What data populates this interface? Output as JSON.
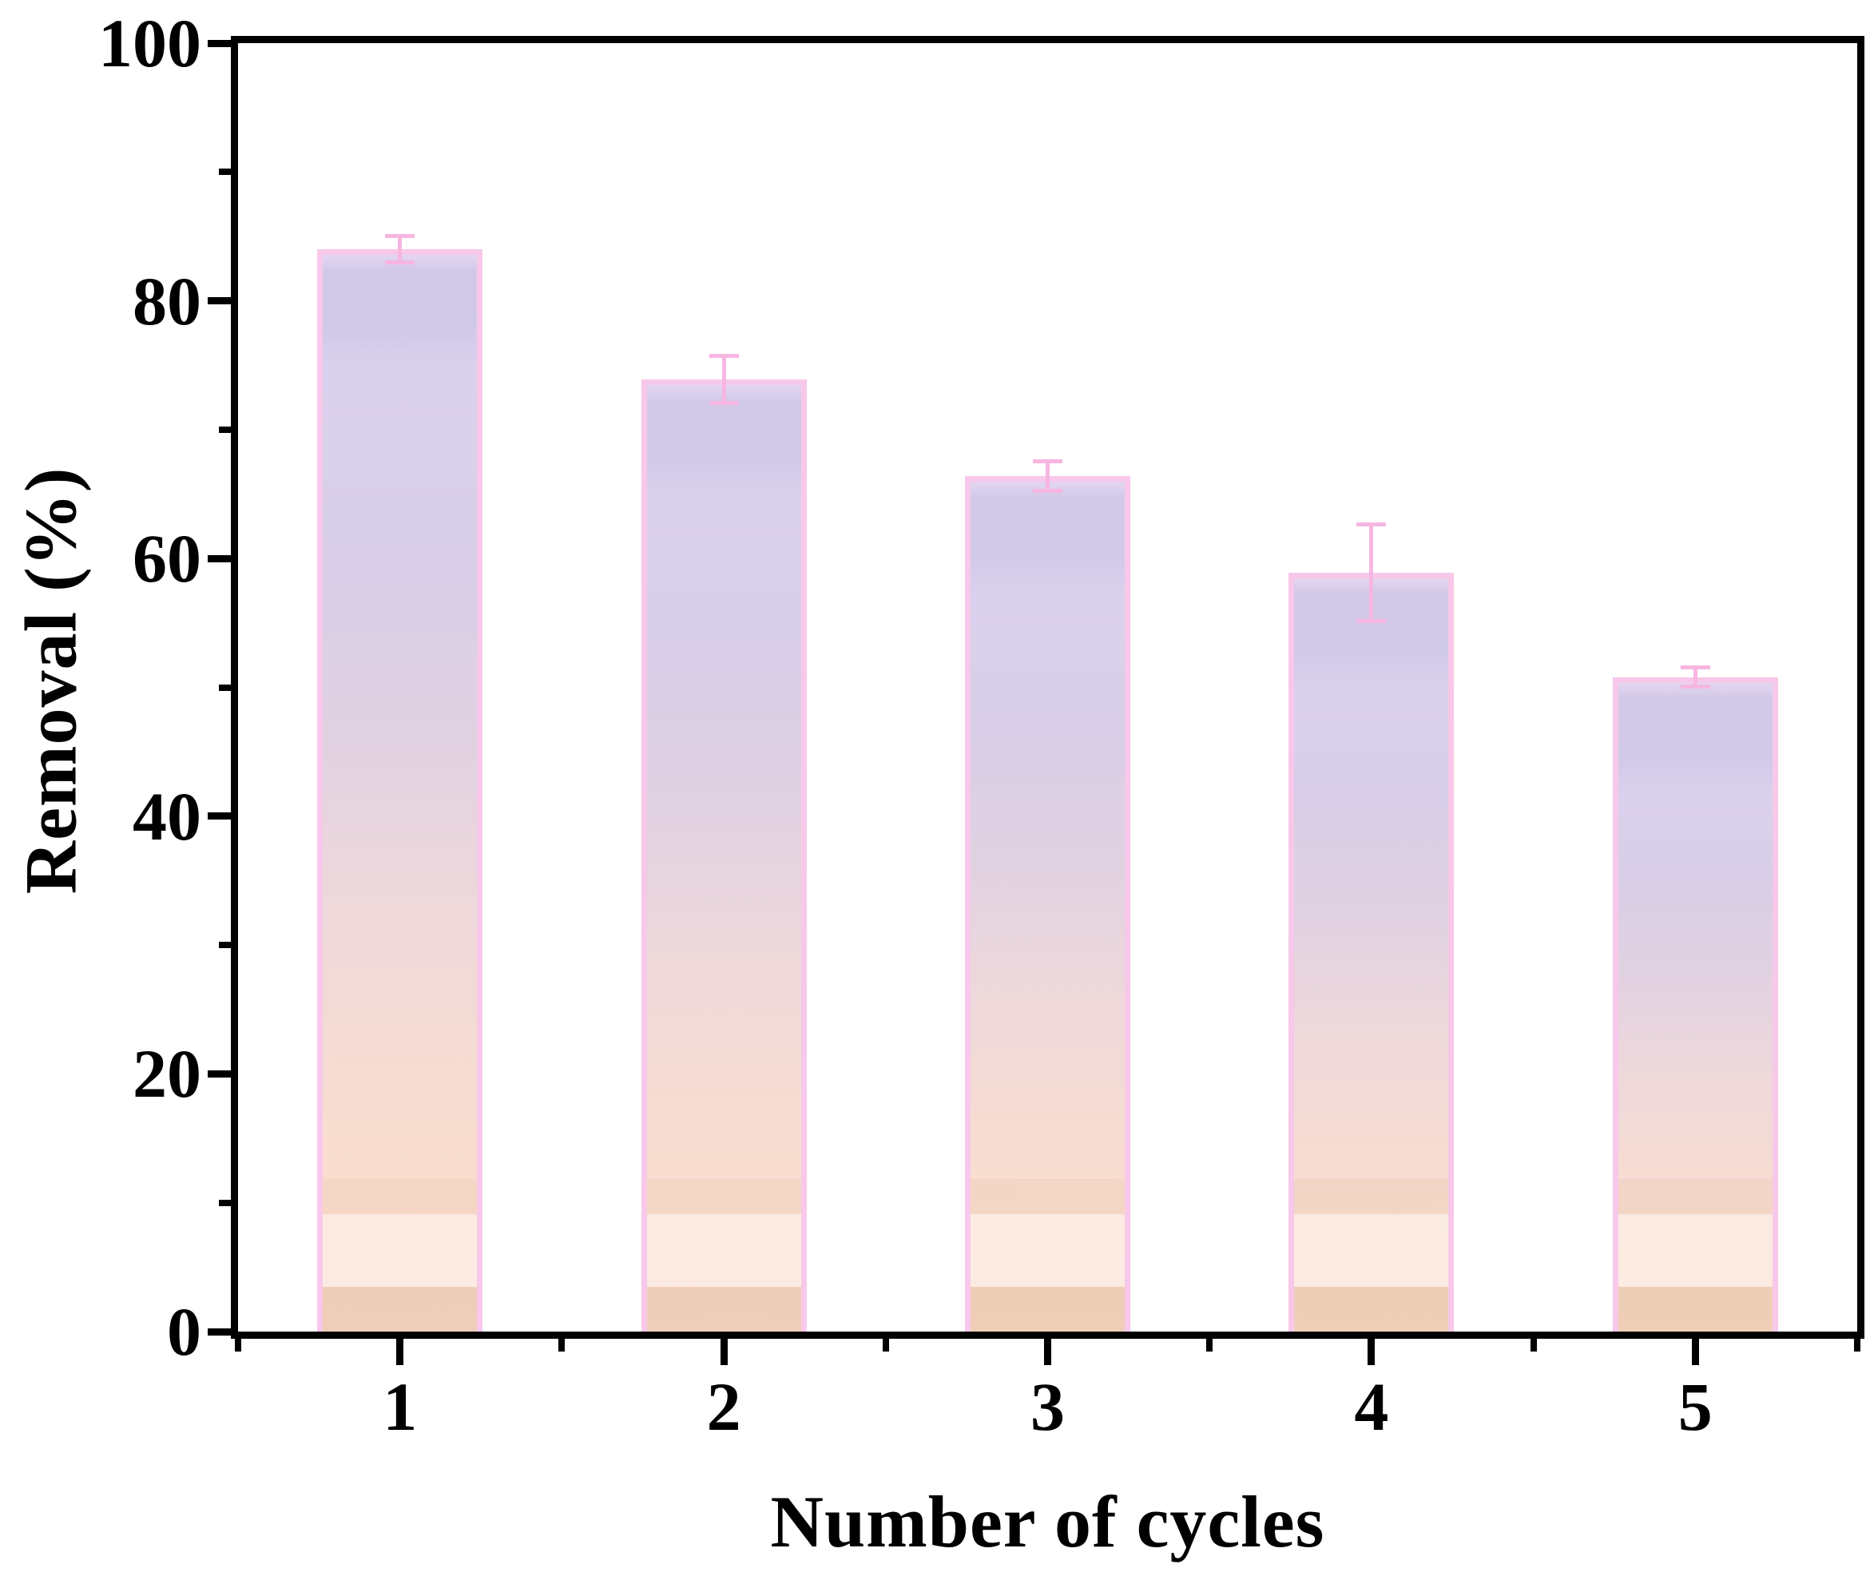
{
  "figure": {
    "background": "#ffffff"
  },
  "chart_data": {
    "type": "bar",
    "title": "",
    "xlabel": "Number of cycles",
    "ylabel": "Removal (%)",
    "categories": [
      "1",
      "2",
      "3",
      "4",
      "5"
    ],
    "values": [
      84,
      73.9,
      66.4,
      58.9,
      50.8
    ],
    "errors": [
      1.2,
      2.0,
      1.3,
      3.9,
      0.9
    ],
    "ylim": [
      0,
      100
    ],
    "y_major_ticks": [
      0,
      20,
      40,
      60,
      80,
      100
    ],
    "y_minor_ticks": [
      10,
      30,
      50,
      70,
      90
    ],
    "grid": false,
    "legend": "none",
    "bar_width_fraction": 0.51,
    "style": {
      "axis_color": "#000000",
      "bar_border_color": "#f8c8ea",
      "error_bar_color": "#f7b6e1",
      "fill_stops": [
        [
          "0px",
          "#e4d6f1"
        ],
        [
          "20px",
          "#d2c9e8"
        ],
        [
          "95px",
          "#d1c9e8"
        ],
        [
          "140px",
          "#dad1ec"
        ],
        [
          "30%",
          "#d8cee7"
        ],
        [
          "46%",
          "#e2d2e1"
        ],
        [
          "61%",
          "#eed8da"
        ],
        [
          "76%",
          "#f6dcd2"
        ],
        [
          "88%",
          "#fadecf"
        ],
        [
          "100%",
          "#fbdfd0"
        ]
      ],
      "bottom_bands": [
        [
          "0px",
          "56px",
          "rgba(198,148,102,0.22)"
        ],
        [
          "56px",
          "147px",
          "rgba(255,255,255,0.38)"
        ],
        [
          "147px",
          "191px",
          "rgba(198,148,102,0.10)"
        ]
      ]
    }
  }
}
